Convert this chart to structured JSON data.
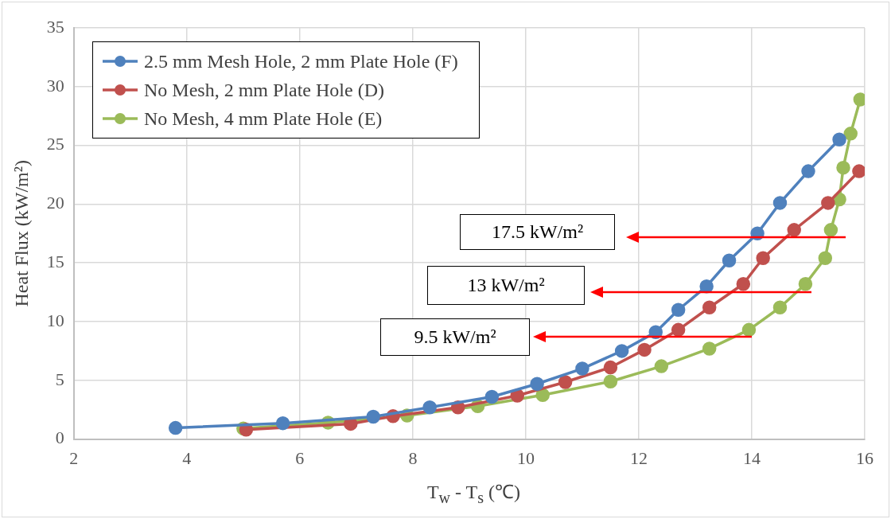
{
  "chart_data": {
    "type": "line",
    "xlabel": "T$_{w}$ - T$_{s}$ (℃)",
    "ylabel": "Heat Flux (kW/m²)",
    "xlim": [
      2,
      16
    ],
    "xticks": [
      2,
      4,
      6,
      8,
      10,
      12,
      14,
      16
    ],
    "ylim": [
      0,
      35
    ],
    "yticks": [
      0,
      5,
      10,
      15,
      20,
      25,
      30,
      35
    ],
    "grid": true,
    "legend": "top left",
    "marker": "circle",
    "line_style": "solid",
    "series": [
      {
        "name": "2.5 mm Mesh Hole, 2 mm Plate Hole (F)",
        "color": "#4f81bd",
        "x": [
          3.8,
          5.7,
          7.3,
          8.3,
          9.4,
          10.2,
          11.0,
          11.7,
          12.3,
          12.7,
          13.2,
          13.6,
          14.1,
          14.5,
          15.0,
          15.55
        ],
        "values": [
          0.95,
          1.35,
          1.9,
          2.7,
          3.6,
          4.7,
          6.0,
          7.5,
          9.1,
          11.0,
          13.0,
          15.2,
          17.5,
          20.1,
          22.8,
          25.5
        ]
      },
      {
        "name": "No Mesh, 2 mm Plate Hole (D)",
        "color": "#c0504d",
        "x": [
          5.05,
          6.9,
          7.65,
          8.8,
          9.85,
          10.7,
          11.5,
          12.1,
          12.7,
          13.25,
          13.85,
          14.2,
          14.75,
          15.35,
          15.9
        ],
        "values": [
          0.8,
          1.3,
          1.95,
          2.7,
          3.7,
          4.85,
          6.1,
          7.6,
          9.3,
          11.2,
          13.2,
          15.4,
          17.8,
          20.1,
          22.8
        ]
      },
      {
        "name": "No Mesh, 4 mm Plate Hole (E)",
        "color": "#9bbb59",
        "x": [
          5.0,
          6.5,
          7.9,
          9.15,
          10.3,
          11.5,
          12.4,
          13.25,
          13.95,
          14.5,
          14.95,
          15.3,
          15.4,
          15.55,
          15.62,
          15.75,
          15.92
        ],
        "values": [
          0.9,
          1.4,
          2.0,
          2.8,
          3.75,
          4.9,
          6.2,
          7.7,
          9.3,
          11.2,
          13.2,
          15.4,
          17.8,
          20.4,
          23.1,
          26.0,
          28.9
        ]
      }
    ],
    "annotations": [
      "17.5 kW/m²",
      "13 kW/m²",
      "9.5 kW/m²"
    ]
  }
}
